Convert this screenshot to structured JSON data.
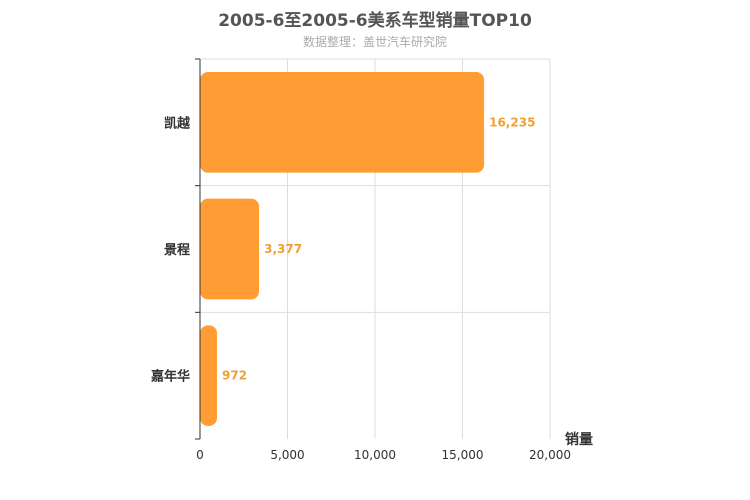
{
  "title": "2005-6至2005-6美系车型销量TOP10",
  "subtitle": "数据整理：盖世汽车研究院",
  "colors": {
    "bar": "#ff9c33",
    "label": "#f0a030",
    "grid": "#dddddd",
    "axis": "#333333"
  },
  "chart_data": {
    "type": "bar",
    "orientation": "horizontal",
    "categories": [
      "凯越",
      "景程",
      "嘉年华"
    ],
    "values": [
      16235,
      3377,
      972
    ],
    "value_labels": [
      "16,235",
      "3,377",
      "972"
    ],
    "title": "2005-6至2005-6美系车型销量TOP10",
    "subtitle": "数据整理：盖世汽车研究院",
    "xlabel": "销量",
    "ylabel": "",
    "xlim": [
      0,
      20000
    ],
    "xticks": [
      0,
      5000,
      10000,
      15000,
      20000
    ],
    "xtick_labels": [
      "0",
      "5,000",
      "10,000",
      "15,000",
      "20,000"
    ],
    "grid": true,
    "legend": "none"
  }
}
